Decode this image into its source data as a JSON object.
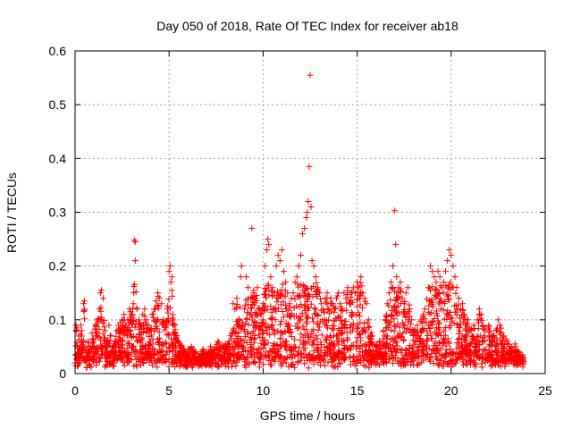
{
  "chart_data": {
    "type": "scatter",
    "title": "Day 050 of 2018, Rate Of TEC Index for receiver ab18",
    "xlabel": "GPS time / hours",
    "ylabel": "ROTI / TECUs",
    "xlim": [
      0,
      25
    ],
    "ylim": [
      0,
      0.6
    ],
    "xticks": [
      0,
      5,
      10,
      15,
      20,
      25
    ],
    "xtick_labels": [
      "0",
      "5",
      "10",
      "15",
      "20",
      "25"
    ],
    "yticks": [
      0,
      0.1,
      0.2,
      0.3,
      0.4,
      0.5,
      0.6
    ],
    "ytick_labels": [
      "0",
      "0.1",
      "0.2",
      "0.3",
      "0.4",
      "0.5",
      "0.6"
    ],
    "grid": true,
    "marker": "+",
    "color": "#ff0000",
    "series": [
      {
        "name": "ROTI",
        "description": "dense cloud of ROTI samples from 0 to ~23.8 h; values sampled as envelope of visible points",
        "points": [
          [
            0.0,
            0.02
          ],
          [
            0.05,
            0.09
          ],
          [
            0.1,
            0.085
          ],
          [
            0.15,
            0.03
          ],
          [
            0.2,
            0.07
          ],
          [
            0.25,
            0.04
          ],
          [
            0.3,
            0.09
          ],
          [
            0.35,
            0.08
          ],
          [
            0.4,
            0.05
          ],
          [
            0.45,
            0.13
          ],
          [
            0.5,
            0.135
          ],
          [
            0.6,
            0.03
          ],
          [
            0.7,
            0.06
          ],
          [
            0.8,
            0.05
          ],
          [
            0.9,
            0.075
          ],
          [
            1.0,
            0.06
          ],
          [
            1.1,
            0.09
          ],
          [
            1.2,
            0.1
          ],
          [
            1.3,
            0.12
          ],
          [
            1.35,
            0.15
          ],
          [
            1.4,
            0.155
          ],
          [
            1.5,
            0.14
          ],
          [
            1.6,
            0.08
          ],
          [
            1.7,
            0.06
          ],
          [
            1.8,
            0.09
          ],
          [
            1.9,
            0.07
          ],
          [
            2.0,
            0.05
          ],
          [
            2.1,
            0.06
          ],
          [
            2.2,
            0.08
          ],
          [
            2.3,
            0.09
          ],
          [
            2.4,
            0.095
          ],
          [
            2.5,
            0.1
          ],
          [
            2.6,
            0.11
          ],
          [
            2.7,
            0.09
          ],
          [
            2.8,
            0.1
          ],
          [
            2.9,
            0.12
          ],
          [
            3.0,
            0.11
          ],
          [
            3.1,
            0.13
          ],
          [
            3.15,
            0.248
          ],
          [
            3.2,
            0.245
          ],
          [
            3.2,
            0.21
          ],
          [
            3.3,
            0.12
          ],
          [
            3.4,
            0.1
          ],
          [
            3.5,
            0.09
          ],
          [
            3.6,
            0.11
          ],
          [
            3.7,
            0.12
          ],
          [
            3.8,
            0.1
          ],
          [
            3.9,
            0.09
          ],
          [
            4.0,
            0.08
          ],
          [
            4.1,
            0.11
          ],
          [
            4.2,
            0.12
          ],
          [
            4.3,
            0.135
          ],
          [
            4.4,
            0.15
          ],
          [
            4.5,
            0.14
          ],
          [
            4.6,
            0.13
          ],
          [
            4.7,
            0.1
          ],
          [
            4.8,
            0.09
          ],
          [
            4.9,
            0.12
          ],
          [
            5.0,
            0.19
          ],
          [
            5.05,
            0.2
          ],
          [
            5.1,
            0.17
          ],
          [
            5.15,
            0.18
          ],
          [
            5.2,
            0.11
          ],
          [
            5.3,
            0.09
          ],
          [
            5.4,
            0.07
          ],
          [
            5.5,
            0.06
          ],
          [
            5.7,
            0.05
          ],
          [
            5.9,
            0.04
          ],
          [
            6.0,
            0.045
          ],
          [
            6.2,
            0.05
          ],
          [
            6.4,
            0.04
          ],
          [
            6.6,
            0.03
          ],
          [
            6.8,
            0.045
          ],
          [
            7.0,
            0.04
          ],
          [
            7.2,
            0.05
          ],
          [
            7.4,
            0.045
          ],
          [
            7.6,
            0.06
          ],
          [
            7.8,
            0.05
          ],
          [
            8.0,
            0.055
          ],
          [
            8.2,
            0.06
          ],
          [
            8.4,
            0.13
          ],
          [
            8.5,
            0.12
          ],
          [
            8.6,
            0.14
          ],
          [
            8.7,
            0.1
          ],
          [
            8.8,
            0.18
          ],
          [
            8.85,
            0.2
          ],
          [
            8.9,
            0.09
          ],
          [
            9.0,
            0.12
          ],
          [
            9.1,
            0.18
          ],
          [
            9.2,
            0.16
          ],
          [
            9.3,
            0.11
          ],
          [
            9.4,
            0.27
          ],
          [
            9.5,
            0.15
          ],
          [
            9.6,
            0.14
          ],
          [
            9.7,
            0.16
          ],
          [
            9.8,
            0.12
          ],
          [
            9.9,
            0.11
          ],
          [
            10.0,
            0.13
          ],
          [
            10.1,
            0.2
          ],
          [
            10.2,
            0.23
          ],
          [
            10.25,
            0.25
          ],
          [
            10.3,
            0.24
          ],
          [
            10.4,
            0.18
          ],
          [
            10.5,
            0.16
          ],
          [
            10.6,
            0.15
          ],
          [
            10.7,
            0.2
          ],
          [
            10.8,
            0.22
          ],
          [
            10.9,
            0.21
          ],
          [
            11.0,
            0.23
          ],
          [
            11.1,
            0.19
          ],
          [
            11.2,
            0.17
          ],
          [
            11.3,
            0.15
          ],
          [
            11.4,
            0.13
          ],
          [
            11.5,
            0.14
          ],
          [
            11.6,
            0.15
          ],
          [
            11.7,
            0.17
          ],
          [
            11.8,
            0.18
          ],
          [
            11.9,
            0.2
          ],
          [
            12.0,
            0.22
          ],
          [
            12.1,
            0.26
          ],
          [
            12.2,
            0.27
          ],
          [
            12.3,
            0.29
          ],
          [
            12.35,
            0.3
          ],
          [
            12.4,
            0.32
          ],
          [
            12.45,
            0.385
          ],
          [
            12.5,
            0.555
          ],
          [
            12.55,
            0.31
          ],
          [
            12.6,
            0.21
          ],
          [
            12.7,
            0.2
          ],
          [
            12.8,
            0.18
          ],
          [
            12.9,
            0.16
          ],
          [
            13.0,
            0.15
          ],
          [
            13.1,
            0.13
          ],
          [
            13.2,
            0.12
          ],
          [
            13.3,
            0.14
          ],
          [
            13.4,
            0.15
          ],
          [
            13.5,
            0.12
          ],
          [
            13.6,
            0.14
          ],
          [
            13.7,
            0.13
          ],
          [
            13.8,
            0.12
          ],
          [
            13.9,
            0.14
          ],
          [
            14.0,
            0.15
          ],
          [
            14.1,
            0.13
          ],
          [
            14.2,
            0.12
          ],
          [
            14.3,
            0.15
          ],
          [
            14.4,
            0.14
          ],
          [
            14.5,
            0.16
          ],
          [
            14.6,
            0.13
          ],
          [
            14.7,
            0.15
          ],
          [
            14.8,
            0.16
          ],
          [
            14.9,
            0.15
          ],
          [
            15.0,
            0.17
          ],
          [
            15.1,
            0.16
          ],
          [
            15.2,
            0.18
          ],
          [
            15.3,
            0.15
          ],
          [
            15.4,
            0.14
          ],
          [
            15.5,
            0.13
          ],
          [
            15.6,
            0.1
          ],
          [
            15.8,
            0.07
          ],
          [
            16.0,
            0.05
          ],
          [
            16.2,
            0.06
          ],
          [
            16.4,
            0.08
          ],
          [
            16.5,
            0.1
          ],
          [
            16.6,
            0.13
          ],
          [
            16.7,
            0.15
          ],
          [
            16.8,
            0.17
          ],
          [
            16.9,
            0.2
          ],
          [
            17.0,
            0.303
          ],
          [
            17.05,
            0.24
          ],
          [
            17.1,
            0.18
          ],
          [
            17.2,
            0.16
          ],
          [
            17.3,
            0.17
          ],
          [
            17.4,
            0.14
          ],
          [
            17.5,
            0.13
          ],
          [
            17.6,
            0.15
          ],
          [
            17.7,
            0.16
          ],
          [
            17.8,
            0.12
          ],
          [
            17.9,
            0.1
          ],
          [
            18.0,
            0.08
          ],
          [
            18.2,
            0.09
          ],
          [
            18.4,
            0.1
          ],
          [
            18.6,
            0.12
          ],
          [
            18.8,
            0.16
          ],
          [
            18.9,
            0.2
          ],
          [
            19.0,
            0.19
          ],
          [
            19.1,
            0.18
          ],
          [
            19.2,
            0.17
          ],
          [
            19.3,
            0.19
          ],
          [
            19.4,
            0.18
          ],
          [
            19.5,
            0.16
          ],
          [
            19.6,
            0.17
          ],
          [
            19.7,
            0.19
          ],
          [
            19.8,
            0.21
          ],
          [
            19.9,
            0.23
          ],
          [
            20.0,
            0.22
          ],
          [
            20.1,
            0.2
          ],
          [
            20.2,
            0.18
          ],
          [
            20.3,
            0.16
          ],
          [
            20.4,
            0.14
          ],
          [
            20.5,
            0.12
          ],
          [
            20.6,
            0.13
          ],
          [
            20.7,
            0.11
          ],
          [
            20.8,
            0.09
          ],
          [
            20.9,
            0.1
          ],
          [
            21.0,
            0.08
          ],
          [
            21.2,
            0.09
          ],
          [
            21.4,
            0.1
          ],
          [
            21.5,
            0.12
          ],
          [
            21.6,
            0.11
          ],
          [
            21.8,
            0.08
          ],
          [
            22.0,
            0.09
          ],
          [
            22.2,
            0.07
          ],
          [
            22.4,
            0.08
          ],
          [
            22.5,
            0.1
          ],
          [
            22.6,
            0.09
          ],
          [
            22.8,
            0.07
          ],
          [
            23.0,
            0.06
          ],
          [
            23.2,
            0.05
          ],
          [
            23.4,
            0.055
          ],
          [
            23.6,
            0.04
          ],
          [
            23.8,
            0.035
          ]
        ]
      }
    ]
  }
}
